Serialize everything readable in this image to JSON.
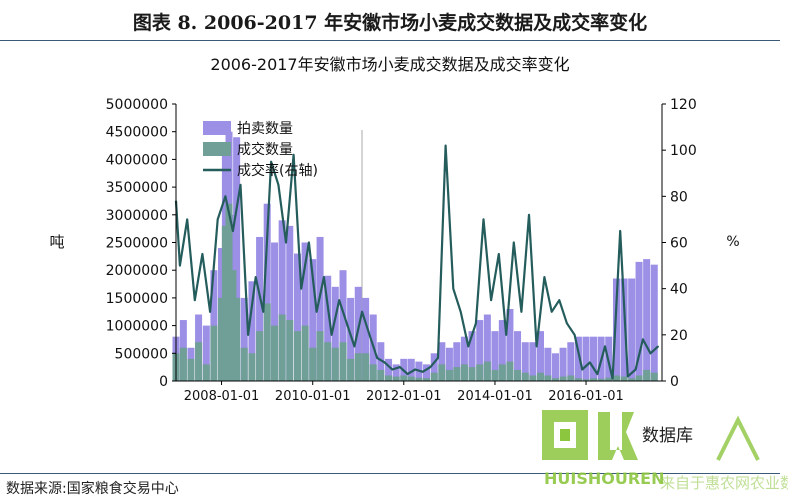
{
  "figure_title": "图表 8.  2006-2017 年安徽市场小麦成交数据及成交率变化",
  "source_note": "数据来源:国家粮食交易中心",
  "watermark": {
    "text": "HUISHOUREN",
    "partial_text": "数据库",
    "tagline": "来自于惠农网农业数据",
    "color": "#8cc63f"
  },
  "chart_data": {
    "type": "bar",
    "title": "2006-2017年安徽市场小麦成交数据及成交率变化",
    "ylabel": "吨",
    "y2label": "%",
    "ylim": [
      0,
      5000000
    ],
    "y2lim": [
      0,
      120
    ],
    "yticks": [
      "5000000",
      "4500000",
      "4000000",
      "3500000",
      "3000000",
      "2500000",
      "2000000",
      "1500000",
      "1000000",
      "500000",
      "0"
    ],
    "y2ticks": [
      "120",
      "100",
      "80",
      "60",
      "40",
      "20",
      "0"
    ],
    "xlim": [
      "2007-01-01",
      "2017-09-01"
    ],
    "xticks": [
      "2008-01-01",
      "2010-01-01",
      "2012-01-01",
      "2014-01-01",
      "2016-01-01"
    ],
    "legend_position": "top-left",
    "colors": {
      "auction": "#9b8fe6",
      "deal": "#6f9f96",
      "rate": "#255c5c"
    },
    "series": [
      {
        "name": "拍卖数量",
        "kind": "bar",
        "axis": "left",
        "x": [
          "2007-01-01",
          "2007-03-01",
          "2007-05-01",
          "2007-07-01",
          "2007-09-01",
          "2007-11-01",
          "2008-01-01",
          "2008-02-01",
          "2008-03-01",
          "2008-04-01",
          "2008-05-01",
          "2008-07-01",
          "2008-09-01",
          "2008-11-01",
          "2009-01-01",
          "2009-03-01",
          "2009-05-01",
          "2009-07-01",
          "2009-09-01",
          "2009-11-01",
          "2010-01-01",
          "2010-03-01",
          "2010-05-01",
          "2010-07-01",
          "2010-09-01",
          "2010-11-01",
          "2011-01-01",
          "2011-03-01",
          "2011-05-01",
          "2011-07-01",
          "2011-09-01",
          "2011-11-01",
          "2012-01-01",
          "2012-03-01",
          "2012-05-01",
          "2012-07-01",
          "2012-09-01",
          "2012-11-01",
          "2013-01-01",
          "2013-03-01",
          "2013-05-01",
          "2013-07-01",
          "2013-09-01",
          "2013-11-01",
          "2014-01-01",
          "2014-03-01",
          "2014-05-01",
          "2014-07-01",
          "2014-09-01",
          "2014-11-01",
          "2015-01-01",
          "2015-03-01",
          "2015-05-01",
          "2015-07-01",
          "2015-09-01",
          "2015-11-01",
          "2016-01-01",
          "2016-03-01",
          "2016-05-01",
          "2016-07-01",
          "2016-09-01",
          "2016-11-01",
          "2017-01-01",
          "2017-03-01",
          "2017-05-01",
          "2017-07-01"
        ],
        "values": [
          800000,
          1100000,
          600000,
          1200000,
          1000000,
          2000000,
          2400000,
          4300000,
          4500000,
          3000000,
          4400000,
          1500000,
          1800000,
          2600000,
          3200000,
          2500000,
          2900000,
          2800000,
          2300000,
          2500000,
          2200000,
          2600000,
          1900000,
          1700000,
          2000000,
          1500000,
          1700000,
          1500000,
          1200000,
          700000,
          400000,
          300000,
          400000,
          400000,
          350000,
          300000,
          500000,
          700000,
          600000,
          700000,
          800000,
          900000,
          1100000,
          1200000,
          900000,
          1100000,
          1300000,
          900000,
          700000,
          700000,
          900000,
          600000,
          500000,
          600000,
          700000,
          800000,
          800000,
          800000,
          800000,
          800000,
          1850000,
          1850000,
          1850000,
          2150000,
          2200000,
          2100000
        ]
      },
      {
        "name": "成交数量",
        "kind": "bar",
        "axis": "left",
        "x": [
          "2007-01-01",
          "2007-03-01",
          "2007-05-01",
          "2007-07-01",
          "2007-09-01",
          "2007-11-01",
          "2008-01-01",
          "2008-02-01",
          "2008-03-01",
          "2008-04-01",
          "2008-05-01",
          "2008-07-01",
          "2008-09-01",
          "2008-11-01",
          "2009-01-01",
          "2009-03-01",
          "2009-05-01",
          "2009-07-01",
          "2009-09-01",
          "2009-11-01",
          "2010-01-01",
          "2010-03-01",
          "2010-05-01",
          "2010-07-01",
          "2010-09-01",
          "2010-11-01",
          "2011-01-01",
          "2011-03-01",
          "2011-05-01",
          "2011-07-01",
          "2011-09-01",
          "2011-11-01",
          "2012-01-01",
          "2012-03-01",
          "2012-05-01",
          "2012-07-01",
          "2012-09-01",
          "2012-11-01",
          "2013-01-01",
          "2013-03-01",
          "2013-05-01",
          "2013-07-01",
          "2013-09-01",
          "2013-11-01",
          "2014-01-01",
          "2014-03-01",
          "2014-05-01",
          "2014-07-01",
          "2014-09-01",
          "2014-11-01",
          "2015-01-01",
          "2015-03-01",
          "2015-05-01",
          "2015-07-01",
          "2015-09-01",
          "2015-11-01",
          "2016-01-01",
          "2016-03-01",
          "2016-05-01",
          "2016-07-01",
          "2016-09-01",
          "2016-11-01",
          "2017-01-01",
          "2017-03-01",
          "2017-05-01",
          "2017-07-01"
        ],
        "values": [
          500000,
          600000,
          400000,
          700000,
          300000,
          1000000,
          1500000,
          2800000,
          3200000,
          2000000,
          1500000,
          600000,
          500000,
          900000,
          1400000,
          1000000,
          1200000,
          1100000,
          900000,
          1000000,
          600000,
          900000,
          700000,
          600000,
          700000,
          400000,
          500000,
          500000,
          300000,
          200000,
          100000,
          80000,
          100000,
          80000,
          60000,
          50000,
          150000,
          300000,
          200000,
          250000,
          300000,
          250000,
          300000,
          350000,
          200000,
          300000,
          350000,
          200000,
          150000,
          100000,
          150000,
          100000,
          50000,
          80000,
          100000,
          50000,
          30000,
          50000,
          40000,
          60000,
          100000,
          80000,
          50000,
          100000,
          200000,
          150000
        ]
      },
      {
        "name": "成交率(右轴)",
        "kind": "line",
        "axis": "right",
        "x": [
          "2007-01-01",
          "2007-02-01",
          "2007-04-01",
          "2007-06-01",
          "2007-08-01",
          "2007-10-01",
          "2007-12-01",
          "2008-02-01",
          "2008-04-01",
          "2008-06-01",
          "2008-08-01",
          "2008-10-01",
          "2008-12-01",
          "2009-02-01",
          "2009-04-01",
          "2009-06-01",
          "2009-08-01",
          "2009-10-01",
          "2009-12-01",
          "2010-02-01",
          "2010-04-01",
          "2010-06-01",
          "2010-08-01",
          "2010-10-01",
          "2010-12-01",
          "2011-02-01",
          "2011-04-01",
          "2011-06-01",
          "2011-08-01",
          "2011-10-01",
          "2011-12-01",
          "2012-02-01",
          "2012-04-01",
          "2012-06-01",
          "2012-08-01",
          "2012-10-01",
          "2012-12-01",
          "2013-02-01",
          "2013-04-01",
          "2013-06-01",
          "2013-08-01",
          "2013-10-01",
          "2013-12-01",
          "2014-02-01",
          "2014-04-01",
          "2014-06-01",
          "2014-08-01",
          "2014-10-01",
          "2014-12-01",
          "2015-02-01",
          "2015-04-01",
          "2015-06-01",
          "2015-08-01",
          "2015-10-01",
          "2015-12-01",
          "2016-02-01",
          "2016-04-01",
          "2016-06-01",
          "2016-08-01",
          "2016-10-01",
          "2016-12-01",
          "2017-02-01",
          "2017-04-01",
          "2017-06-01",
          "2017-08-01"
        ],
        "values": [
          78,
          50,
          70,
          35,
          55,
          30,
          70,
          80,
          65,
          85,
          20,
          45,
          30,
          95,
          85,
          60,
          98,
          40,
          60,
          30,
          45,
          20,
          35,
          25,
          15,
          30,
          20,
          10,
          8,
          5,
          6,
          3,
          5,
          4,
          6,
          10,
          102,
          40,
          30,
          15,
          25,
          70,
          35,
          55,
          20,
          60,
          30,
          72,
          15,
          45,
          30,
          35,
          25,
          20,
          5,
          8,
          3,
          15,
          1,
          65,
          2,
          5,
          18,
          12,
          15
        ]
      }
    ]
  }
}
